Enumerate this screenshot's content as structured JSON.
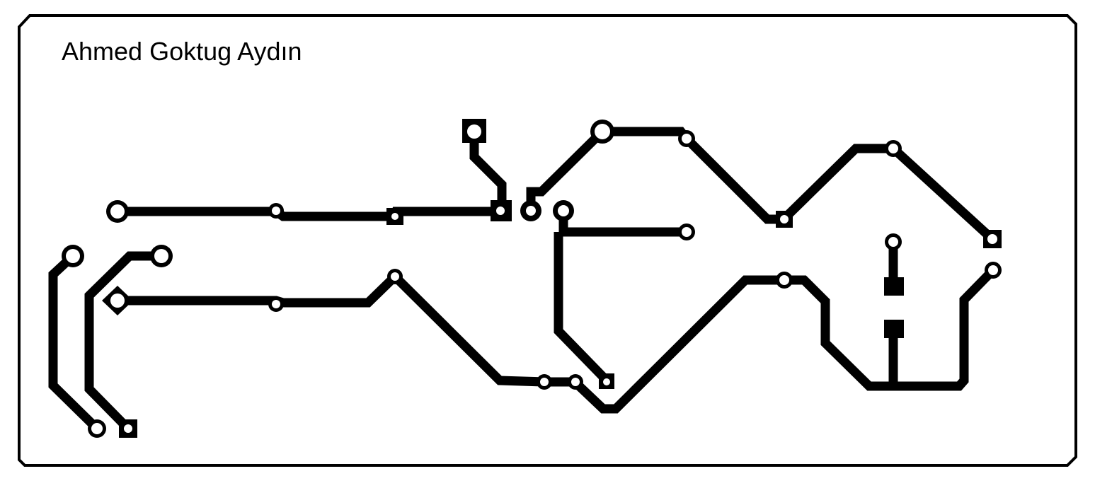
{
  "board": {
    "author": "Ahmed Goktug Aydın",
    "copper_color": "#000000",
    "background_color": "#ffffff"
  }
}
